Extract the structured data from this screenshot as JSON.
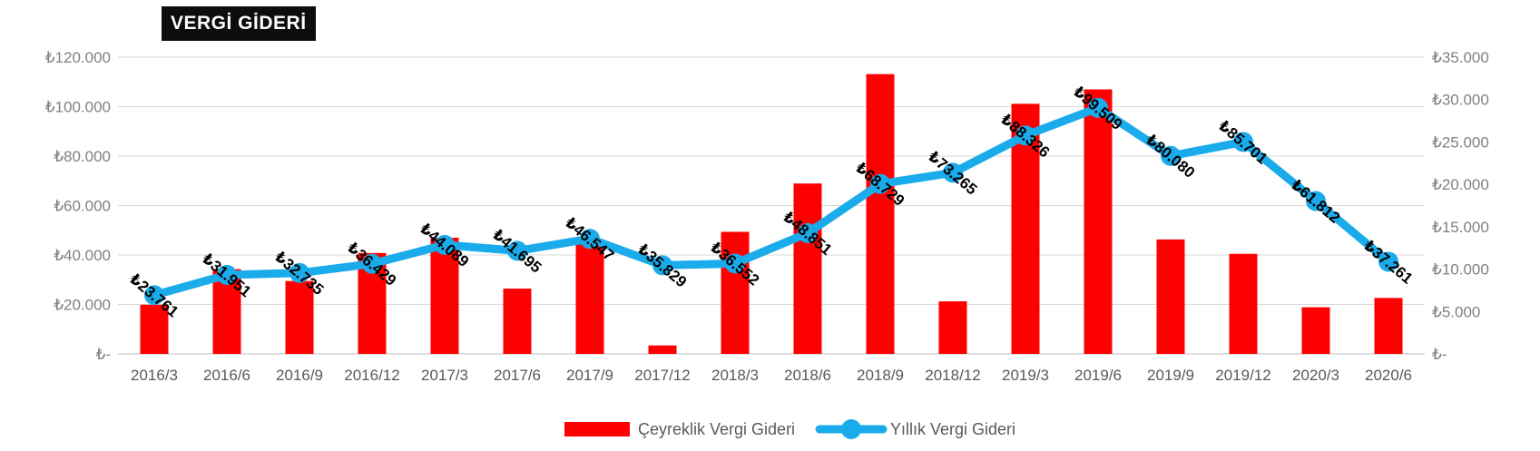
{
  "title": "VERGİ GİDERİ",
  "chart_data": {
    "type": "bar+line",
    "title": "VERGİ GİDERİ",
    "categories": [
      "2016/3",
      "2016/6",
      "2016/9",
      "2016/12",
      "2017/3",
      "2017/6",
      "2017/9",
      "2017/12",
      "2018/3",
      "2018/6",
      "2018/9",
      "2018/12",
      "2019/3",
      "2019/6",
      "2019/9",
      "2019/12",
      "2020/3",
      "2020/6"
    ],
    "series": [
      {
        "name": "Çeyreklik Vergi Gideri",
        "type": "bar",
        "axis": "right",
        "color": "#ff0000",
        "values": [
          5800,
          10000,
          8600,
          11900,
          13700,
          7700,
          12900,
          1000,
          14400,
          20100,
          33000,
          6200,
          29500,
          31200,
          13500,
          11800,
          5500,
          6600
        ]
      },
      {
        "name": "Yıllık Vergi Gideri",
        "type": "line",
        "axis": "left",
        "color": "#1aabeb",
        "values": [
          23761,
          31951,
          32735,
          36429,
          44089,
          41695,
          46547,
          35829,
          36552,
          48851,
          68729,
          73265,
          88326,
          99509,
          80080,
          85701,
          61812,
          37261
        ],
        "labels": [
          "₺23.761",
          "₺31.951",
          "₺32.735",
          "₺36.429",
          "₺44.089",
          "₺41.695",
          "₺46.547",
          "₺35.829",
          "₺36.552",
          "₺48.851",
          "₺68.729",
          "₺73.265",
          "₺88.326",
          "₺99.509",
          "₺80.080",
          "₺85.701",
          "₺61.812",
          "₺37.261"
        ]
      }
    ],
    "left_axis": {
      "range": [
        0,
        120000
      ],
      "ticks": [
        0,
        20000,
        40000,
        60000,
        80000,
        100000,
        120000
      ],
      "tick_labels": [
        "₺-",
        "₺20.000",
        "₺40.000",
        "₺60.000",
        "₺80.000",
        "₺100.000",
        "₺120.000"
      ]
    },
    "right_axis": {
      "range": [
        0,
        35000
      ],
      "ticks": [
        0,
        5000,
        10000,
        15000,
        20000,
        25000,
        30000,
        35000
      ],
      "tick_labels": [
        "₺-",
        "₺5.000",
        "₺10.000",
        "₺15.000",
        "₺20.000",
        "₺25.000",
        "₺30.000",
        "₺35.000"
      ]
    },
    "grid": true,
    "legend_position": "bottom"
  }
}
